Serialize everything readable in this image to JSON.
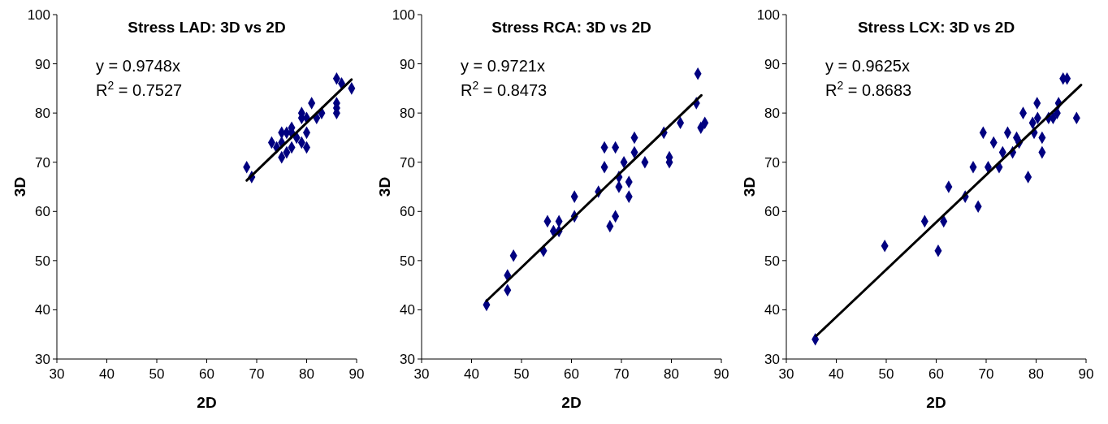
{
  "chart_data": [
    {
      "type": "scatter",
      "title": "Stress LAD: 3D vs 2D",
      "xlabel": "2D",
      "ylabel": "3D",
      "xlim": [
        30,
        90
      ],
      "xticks": [
        30,
        40,
        50,
        60,
        70,
        80,
        90
      ],
      "ylim": [
        30,
        100
      ],
      "yticks": [
        30,
        40,
        50,
        60,
        70,
        80,
        90,
        100
      ],
      "marker": "diamond",
      "annotations": [
        "y = 0.9748x",
        "R$^{2}$ = 0.7527"
      ],
      "series": [
        {
          "type": "scatter",
          "color": "#000080",
          "x": [
            68,
            69,
            73,
            74,
            75,
            75,
            76,
            77,
            77,
            77,
            79,
            79,
            79,
            80,
            80,
            80,
            81,
            82,
            83,
            86,
            86,
            86,
            86,
            87,
            89,
            75,
            78,
            76
          ],
          "values": [
            69,
            67,
            74,
            73,
            76,
            71,
            72,
            77,
            76,
            73,
            80,
            74,
            79,
            73,
            79,
            76,
            82,
            79,
            80,
            87,
            82,
            81,
            80,
            86,
            85,
            74,
            75,
            76
          ]
        },
        {
          "type": "line",
          "color": "#000000",
          "marker": "none",
          "x": [
            68,
            89
          ],
          "values": [
            66.3,
            86.8
          ]
        }
      ]
    },
    {
      "type": "scatter",
      "title": "Stress RCA: 3D vs 2D",
      "xlabel": "2D",
      "ylabel": "3D",
      "xlim": [
        30,
        90
      ],
      "xticks": [
        30,
        40,
        50,
        60,
        70,
        80,
        90
      ],
      "ylim": [
        30,
        100
      ],
      "yticks": [
        30,
        40,
        50,
        60,
        70,
        80,
        90,
        100
      ],
      "marker": "diamond",
      "annotations": [
        "y = 0.9721x",
        "R$^{2}$ = 0.8473"
      ],
      "series": [
        {
          "type": "scatter",
          "color": "#000080",
          "x": [
            43.0,
            47.2,
            47.2,
            48.4,
            54.4,
            55.2,
            56.4,
            57.5,
            57.5,
            60.6,
            60.6,
            65.4,
            66.6,
            66.6,
            68.8,
            67.7,
            68.8,
            69.5,
            69.5,
            70.5,
            71.5,
            71.5,
            72.6,
            72.6,
            74.7,
            78.5,
            79.6,
            79.6,
            81.8,
            85.0,
            85.9,
            86.7,
            85.3
          ],
          "values": [
            41,
            47,
            44,
            51,
            52,
            58,
            56,
            58,
            56,
            59,
            63,
            64,
            69,
            73,
            73,
            57,
            59,
            67,
            65,
            70,
            66,
            63,
            75,
            72,
            70,
            76,
            71,
            70,
            78,
            82,
            77,
            78,
            88
          ]
        },
        {
          "type": "line",
          "color": "#000000",
          "marker": "none",
          "x": [
            43,
            86
          ],
          "values": [
            41.8,
            83.6
          ]
        }
      ]
    },
    {
      "type": "scatter",
      "title": "Stress LCX: 3D vs 2D",
      "xlabel": "2D",
      "ylabel": "3D",
      "xlim": [
        30,
        90
      ],
      "xticks": [
        30,
        40,
        50,
        60,
        70,
        80,
        90
      ],
      "ylim": [
        30,
        100
      ],
      "yticks": [
        30,
        40,
        50,
        60,
        70,
        80,
        90,
        100
      ],
      "marker": "diamond",
      "annotations": [
        "y = 0.9625x",
        "R$^{2}$ = 0.8683"
      ],
      "series": [
        {
          "type": "scatter",
          "color": "#000080",
          "x": [
            35.8,
            49.7,
            60.4,
            57.7,
            61.5,
            62.5,
            65.8,
            68.4,
            67.4,
            69.4,
            70.4,
            71.5,
            72.6,
            73.3,
            74.3,
            75.3,
            76.1,
            76.6,
            77.4,
            78.4,
            79.3,
            79.6,
            80.2,
            80.3,
            81.2,
            81.2,
            82.5,
            83.4,
            84.2,
            84.5,
            85.4,
            86.2,
            88.1
          ],
          "values": [
            34,
            53,
            52,
            58,
            58,
            65,
            63,
            61,
            69,
            76,
            69,
            74,
            69,
            72,
            76,
            72,
            75,
            74,
            80,
            67,
            78,
            76,
            82,
            79,
            75,
            72,
            79,
            79,
            80,
            82,
            87,
            87,
            79
          ]
        },
        {
          "type": "line",
          "color": "#000000",
          "marker": "none",
          "x": [
            36,
            89
          ],
          "values": [
            34.7,
            85.7
          ]
        }
      ]
    }
  ]
}
